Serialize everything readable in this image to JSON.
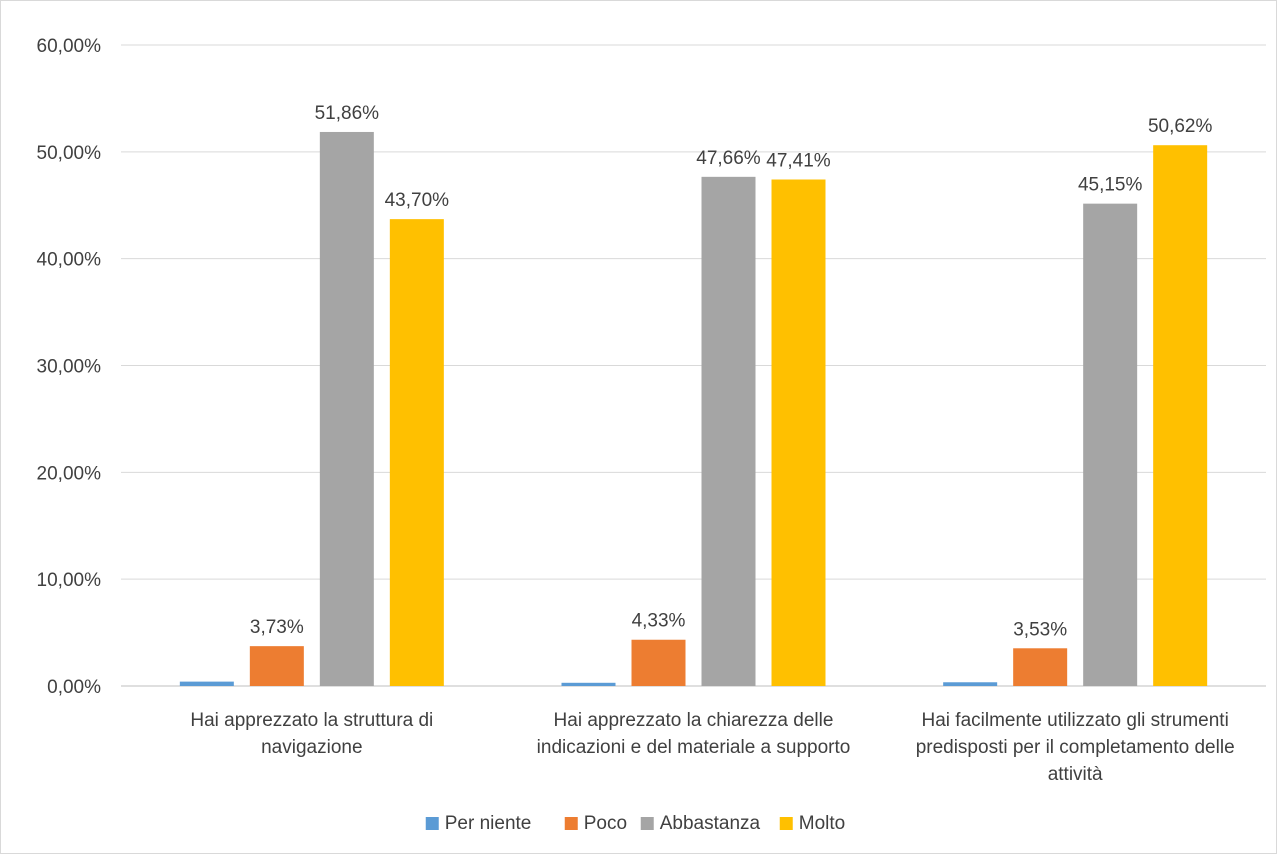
{
  "chart_data": {
    "type": "bar",
    "title": "",
    "xlabel": "",
    "ylabel": "",
    "ylim": [
      0,
      60
    ],
    "y_ticks": [
      "0,00%",
      "10,00%",
      "20,00%",
      "30,00%",
      "40,00%",
      "50,00%",
      "60,00%"
    ],
    "grid": true,
    "legend_position": "bottom",
    "categories": [
      [
        "Hai apprezzato la struttura di",
        "navigazione"
      ],
      [
        "Hai apprezzato la chiarezza delle",
        "indicazioni e del materiale a supporto"
      ],
      [
        "Hai facilmente utilizzato gli strumenti",
        "predisposti per il completamento delle",
        "attività"
      ]
    ],
    "series": [
      {
        "name": "Per niente",
        "color": "#5B9BD5",
        "values": [
          0.41,
          0.3,
          0.35
        ],
        "labels": [
          "",
          "",
          ""
        ]
      },
      {
        "name": "Poco",
        "color": "#ED7D31",
        "values": [
          3.73,
          4.33,
          3.53
        ],
        "labels": [
          "3,73%",
          "4,33%",
          "3,53%"
        ]
      },
      {
        "name": "Abbastanza",
        "color": "#A5A5A5",
        "values": [
          51.86,
          47.66,
          45.15
        ],
        "labels": [
          "51,86%",
          "47,66%",
          "45,15%"
        ]
      },
      {
        "name": "Molto",
        "color": "#FFC000",
        "values": [
          43.7,
          47.41,
          50.62
        ],
        "labels": [
          "43,70%",
          "47,41%",
          "50,62%"
        ]
      }
    ]
  }
}
